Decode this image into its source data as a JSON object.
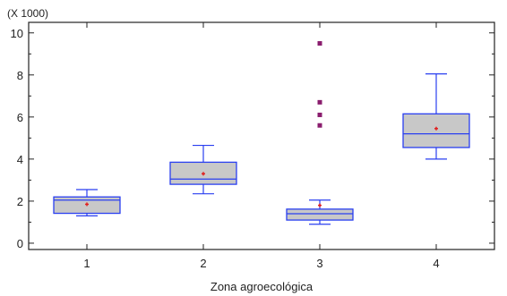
{
  "chart_data": {
    "type": "box",
    "title": "",
    "xlabel": "Zona agroecológica",
    "ylabel": "",
    "y_multiplier": "(X 1000)",
    "ylim": [
      -0.3,
      10.5
    ],
    "yticks": [
      0,
      2,
      4,
      6,
      8,
      10
    ],
    "ytick_labels": [
      "0",
      "2",
      "4",
      "6",
      "8",
      "10"
    ],
    "categories": [
      "1",
      "2",
      "3",
      "4"
    ],
    "boxes": [
      {
        "category": "1",
        "whisker_low": 1.3,
        "q1": 1.42,
        "median": 2.05,
        "q3": 2.2,
        "whisker_high": 2.55,
        "mean": 1.85,
        "outliers": []
      },
      {
        "category": "2",
        "whisker_low": 2.35,
        "q1": 2.8,
        "median": 3.05,
        "q3": 3.85,
        "whisker_high": 4.65,
        "mean": 3.3,
        "outliers": []
      },
      {
        "category": "3",
        "whisker_low": 0.9,
        "q1": 1.1,
        "median": 1.4,
        "q3": 1.62,
        "whisker_high": 2.05,
        "mean": 1.8,
        "outliers": [
          5.6,
          6.1,
          6.7,
          9.5
        ]
      },
      {
        "category": "4",
        "whisker_low": 4.0,
        "q1": 4.55,
        "median": 5.2,
        "q3": 6.15,
        "whisker_high": 8.05,
        "mean": 5.45,
        "outliers": []
      }
    ],
    "colors": {
      "box_fill": "#c8c8c8",
      "box_stroke": "#2a3ff0",
      "mean_marker": "#e02020",
      "outlier_marker": "#8a1d6e",
      "axis": "#222222"
    },
    "grid": false
  }
}
